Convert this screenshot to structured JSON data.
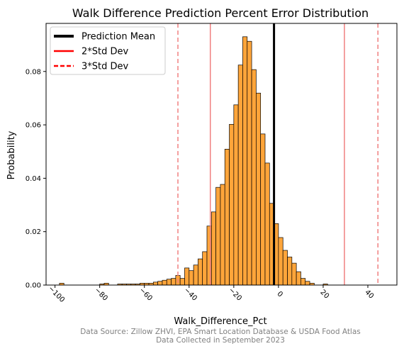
{
  "chart_data": {
    "type": "histogram",
    "title": "Walk Difference Prediction Percent Error Distribution",
    "xlabel": "Walk_Difference_Pct",
    "ylabel": "Probability",
    "xlim": [
      -104,
      53
    ],
    "ylim": [
      0,
      0.098
    ],
    "xticks": [
      -100,
      -80,
      -60,
      -40,
      -20,
      0,
      20,
      40
    ],
    "xtick_labels": [
      "−100",
      "−80",
      "−60",
      "−40",
      "−20",
      "0",
      "20",
      "40"
    ],
    "xtick_rotation": -45,
    "yticks": [
      0.0,
      0.02,
      0.04,
      0.06,
      0.08
    ],
    "ytick_labels": [
      "0.00",
      "0.02",
      "0.04",
      "0.06",
      "0.08"
    ],
    "bin_width": 2,
    "bins": [
      {
        "x0": -98,
        "value": 0.0007
      },
      {
        "x0": -80,
        "value": 0.0004
      },
      {
        "x0": -78,
        "value": 0.0007
      },
      {
        "x0": -72,
        "value": 0.0004
      },
      {
        "x0": -70,
        "value": 0.0004
      },
      {
        "x0": -68,
        "value": 0.0004
      },
      {
        "x0": -66,
        "value": 0.0004
      },
      {
        "x0": -64,
        "value": 0.0004
      },
      {
        "x0": -62,
        "value": 0.0007
      },
      {
        "x0": -60,
        "value": 0.0007
      },
      {
        "x0": -58,
        "value": 0.0007
      },
      {
        "x0": -56,
        "value": 0.0011
      },
      {
        "x0": -54,
        "value": 0.0014
      },
      {
        "x0": -52,
        "value": 0.0018
      },
      {
        "x0": -50,
        "value": 0.0022
      },
      {
        "x0": -48,
        "value": 0.0025
      },
      {
        "x0": -46,
        "value": 0.0036
      },
      {
        "x0": -44,
        "value": 0.0025
      },
      {
        "x0": -42,
        "value": 0.0064
      },
      {
        "x0": -40,
        "value": 0.0054
      },
      {
        "x0": -38,
        "value": 0.0075
      },
      {
        "x0": -36,
        "value": 0.0098
      },
      {
        "x0": -34,
        "value": 0.0125
      },
      {
        "x0": -32,
        "value": 0.0221
      },
      {
        "x0": -30,
        "value": 0.0274
      },
      {
        "x0": -28,
        "value": 0.0366
      },
      {
        "x0": -26,
        "value": 0.0377
      },
      {
        "x0": -24,
        "value": 0.0509
      },
      {
        "x0": -22,
        "value": 0.0602
      },
      {
        "x0": -20,
        "value": 0.0675
      },
      {
        "x0": -18,
        "value": 0.0824
      },
      {
        "x0": -16,
        "value": 0.093
      },
      {
        "x0": -14,
        "value": 0.0913
      },
      {
        "x0": -12,
        "value": 0.0807
      },
      {
        "x0": -10,
        "value": 0.0719
      },
      {
        "x0": -8,
        "value": 0.0566
      },
      {
        "x0": -6,
        "value": 0.0457
      },
      {
        "x0": -4,
        "value": 0.0306
      },
      {
        "x0": -2,
        "value": 0.023
      },
      {
        "x0": 0,
        "value": 0.0178
      },
      {
        "x0": 2,
        "value": 0.013
      },
      {
        "x0": 4,
        "value": 0.0105
      },
      {
        "x0": 6,
        "value": 0.0082
      },
      {
        "x0": 8,
        "value": 0.005
      },
      {
        "x0": 10,
        "value": 0.0025
      },
      {
        "x0": 12,
        "value": 0.0014
      },
      {
        "x0": 14,
        "value": 0.0007
      },
      {
        "x0": 20,
        "value": 0.0004
      }
    ],
    "vlines": [
      {
        "name": "Prediction Mean",
        "x": -2,
        "style": "solid-thick",
        "color": "#000000"
      },
      {
        "name": "2*Std Dev",
        "x": -30.5,
        "style": "solid",
        "color": "#f08080"
      },
      {
        "name": "2*Std Dev",
        "x": 29.5,
        "style": "solid",
        "color": "#f08080"
      },
      {
        "name": "3*Std Dev",
        "x": -45,
        "style": "dashed",
        "color": "#f08080"
      },
      {
        "name": "3*Std Dev",
        "x": 44.5,
        "style": "dashed",
        "color": "#f08080"
      }
    ],
    "legend": {
      "placement": "top-left",
      "items": [
        {
          "label": "Prediction Mean",
          "color": "#000000",
          "style": "solid-thick"
        },
        {
          "label": "2*Std Dev",
          "color": "#ff0000",
          "style": "solid"
        },
        {
          "label": "3*Std Dev",
          "color": "#ff0000",
          "style": "dashed"
        }
      ]
    },
    "bar_color": "#ffa53a",
    "bar_edge_color": "#000000",
    "grid": false
  },
  "source_note": {
    "line1": "Data Source: Zillow ZHVI, EPA Smart Location Database & USDA Food Atlas",
    "line2": "Data Collected in September 2023"
  }
}
